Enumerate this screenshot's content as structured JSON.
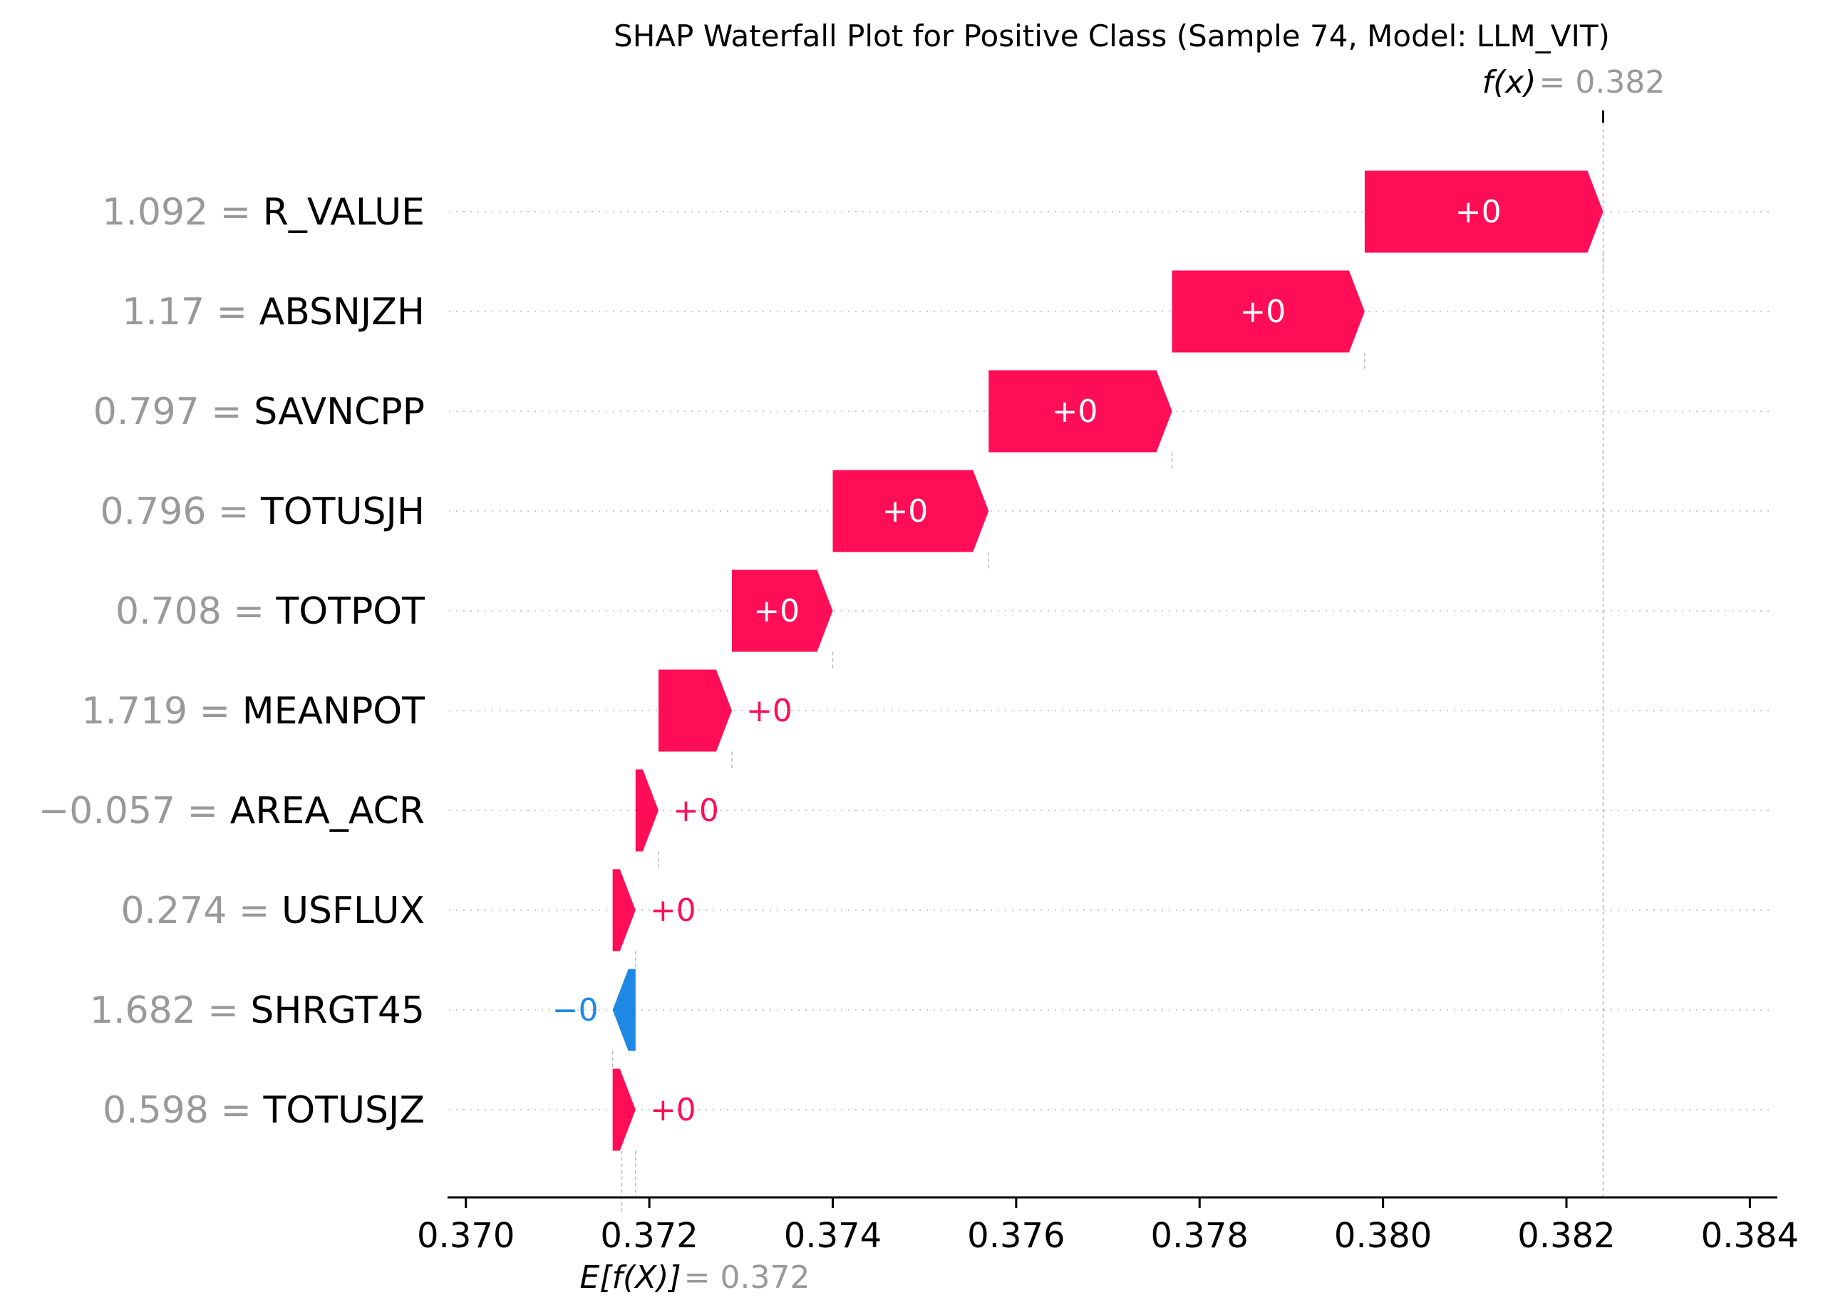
{
  "chart_data": {
    "type": "bar",
    "subtype": "shap-waterfall",
    "title": "SHAP Waterfall Plot for Positive Class (Sample 74, Model: LLM_VIT)",
    "base_value": 0.3717,
    "base_label": "E[f(X)]",
    "base_value_text": "= 0.372",
    "output_value": 0.3824,
    "output_label": "f(x)",
    "output_value_text": "= 0.382",
    "xlim": [
      0.3698,
      0.3843
    ],
    "xticks": [
      0.37,
      0.372,
      0.374,
      0.376,
      0.378,
      0.38,
      0.382,
      0.384
    ],
    "xtick_labels": [
      "0.370",
      "0.372",
      "0.374",
      "0.376",
      "0.378",
      "0.380",
      "0.382",
      "0.384"
    ],
    "features": [
      {
        "value": "1.092",
        "name": "R_VALUE",
        "start": 0.3798,
        "end": 0.3824,
        "label": "+0"
      },
      {
        "value": "1.17",
        "name": "ABSNJZH",
        "start": 0.3777,
        "end": 0.3798,
        "label": "+0"
      },
      {
        "value": "0.797",
        "name": "SAVNCPP",
        "start": 0.3757,
        "end": 0.3777,
        "label": "+0"
      },
      {
        "value": "0.796",
        "name": "TOTUSJH",
        "start": 0.374,
        "end": 0.3757,
        "label": "+0"
      },
      {
        "value": "0.708",
        "name": "TOTPOT",
        "start": 0.3729,
        "end": 0.374,
        "label": "+0"
      },
      {
        "value": "1.719",
        "name": "MEANPOT",
        "start": 0.3721,
        "end": 0.3729,
        "label": "+0"
      },
      {
        "value": "−0.057",
        "name": "AREA_ACR",
        "start": 0.37185,
        "end": 0.3721,
        "label": "+0"
      },
      {
        "value": "0.274",
        "name": "USFLUX",
        "start": 0.3716,
        "end": 0.37185,
        "label": "+0"
      },
      {
        "value": "1.682",
        "name": "SHRGT45",
        "start": 0.37185,
        "end": 0.3716,
        "label": "−0"
      },
      {
        "value": "0.598",
        "name": "TOTUSJZ",
        "start": 0.3716,
        "end": 0.37185,
        "label": "+0"
      }
    ],
    "colors": {
      "positive": "#ff0d57",
      "negative": "#1e88e5",
      "muted": "#999999",
      "grid": "#cccccc"
    }
  }
}
